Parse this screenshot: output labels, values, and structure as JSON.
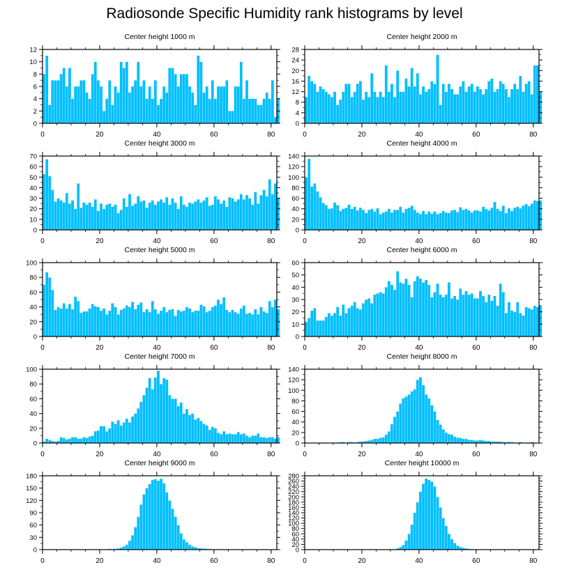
{
  "title": "Radiosonde Specific Humidity rank histograms by level",
  "colors": {
    "bar": "#00bfff",
    "axis": "#000000",
    "background": "#ffffff"
  },
  "chart_data": [
    {
      "type": "bar",
      "title": "Center height 1000 m",
      "xlabel": "",
      "ylabel": "",
      "xlim": [
        0,
        82
      ],
      "ylim": [
        0,
        12
      ],
      "xticks": [
        0,
        20,
        40,
        60,
        80
      ],
      "yticks": [
        0,
        2,
        4,
        6,
        8,
        10,
        12
      ],
      "values": [
        8,
        11,
        3,
        7,
        7,
        7,
        8,
        9,
        6,
        9,
        4,
        6,
        6,
        7,
        7,
        5,
        4,
        8,
        10,
        7,
        6,
        2,
        4,
        7,
        3,
        6,
        5,
        10,
        9,
        10,
        5,
        6,
        7,
        10,
        6,
        7,
        4,
        6,
        4,
        7,
        3,
        4,
        6,
        5,
        9,
        9,
        8,
        6,
        8,
        8,
        8,
        6,
        5,
        3,
        11,
        10,
        5,
        6,
        4,
        7,
        4,
        6,
        6,
        6,
        7,
        2,
        2,
        6,
        6,
        10,
        4,
        7,
        4,
        4,
        4,
        3,
        3,
        4,
        5,
        4,
        7,
        1,
        4
      ]
    },
    {
      "type": "bar",
      "title": "Center height 2000 m",
      "xlabel": "",
      "ylabel": "",
      "xlim": [
        0,
        82
      ],
      "ylim": [
        0,
        28
      ],
      "xticks": [
        0,
        20,
        40,
        60,
        80
      ],
      "yticks": [
        0,
        4,
        8,
        12,
        16,
        20,
        24,
        28
      ],
      "values": [
        10,
        18,
        16,
        15,
        12,
        14,
        13,
        12,
        11,
        10,
        12,
        7,
        9,
        12,
        15,
        15,
        10,
        12,
        15,
        16,
        9,
        12,
        10,
        19,
        12,
        10,
        12,
        10,
        22,
        12,
        15,
        10,
        20,
        12,
        12,
        17,
        14,
        21,
        14,
        19,
        11,
        14,
        12,
        13,
        16,
        15,
        26,
        7,
        15,
        12,
        15,
        13,
        11,
        11,
        14,
        16,
        12,
        14,
        15,
        12,
        14,
        13,
        11,
        13,
        16,
        17,
        12,
        13,
        16,
        15,
        13,
        10,
        13,
        15,
        13,
        18,
        12,
        15,
        16,
        11,
        22,
        22,
        12
      ]
    },
    {
      "type": "bar",
      "title": "Center height 3000 m",
      "xlabel": "",
      "ylabel": "",
      "xlim": [
        0,
        82
      ],
      "ylim": [
        0,
        70
      ],
      "xticks": [
        0,
        20,
        40,
        60,
        80
      ],
      "yticks": [
        0,
        10,
        20,
        30,
        40,
        50,
        60,
        70
      ],
      "values": [
        53,
        67,
        51,
        38,
        27,
        30,
        28,
        26,
        35,
        25,
        28,
        20,
        44,
        21,
        26,
        24,
        26,
        22,
        29,
        18,
        25,
        20,
        24,
        25,
        22,
        24,
        16,
        19,
        30,
        22,
        34,
        23,
        25,
        32,
        27,
        28,
        21,
        26,
        28,
        24,
        27,
        29,
        26,
        31,
        24,
        30,
        26,
        20,
        32,
        24,
        22,
        26,
        25,
        27,
        29,
        26,
        28,
        31,
        23,
        24,
        32,
        29,
        25,
        28,
        22,
        31,
        30,
        27,
        29,
        34,
        29,
        33,
        30,
        24,
        36,
        25,
        33,
        38,
        32,
        48,
        34,
        44,
        30
      ]
    },
    {
      "type": "bar",
      "title": "Center height 4000 m",
      "xlabel": "",
      "ylabel": "",
      "xlim": [
        0,
        82
      ],
      "ylim": [
        0,
        140
      ],
      "xticks": [
        0,
        20,
        40,
        60,
        80
      ],
      "yticks": [
        0,
        20,
        40,
        60,
        80,
        100,
        120,
        140
      ],
      "values": [
        100,
        135,
        82,
        88,
        73,
        62,
        51,
        47,
        40,
        41,
        52,
        47,
        36,
        40,
        42,
        48,
        40,
        44,
        37,
        42,
        38,
        32,
        38,
        40,
        35,
        41,
        30,
        33,
        35,
        40,
        33,
        38,
        38,
        44,
        33,
        40,
        42,
        46,
        38,
        33,
        30,
        36,
        30,
        35,
        31,
        35,
        30,
        32,
        36,
        33,
        32,
        37,
        38,
        34,
        43,
        38,
        40,
        37,
        33,
        37,
        37,
        35,
        44,
        40,
        37,
        42,
        53,
        40,
        36,
        46,
        32,
        41,
        36,
        42,
        44,
        41,
        46,
        49,
        45,
        50,
        56,
        55,
        56
      ]
    },
    {
      "type": "bar",
      "title": "Center height 5000 m",
      "xlabel": "",
      "ylabel": "",
      "xlim": [
        0,
        82
      ],
      "ylim": [
        0,
        100
      ],
      "xticks": [
        0,
        20,
        40,
        60,
        80
      ],
      "yticks": [
        0,
        20,
        40,
        60,
        80,
        100
      ],
      "values": [
        70,
        87,
        80,
        63,
        36,
        40,
        38,
        45,
        38,
        44,
        37,
        54,
        48,
        32,
        34,
        34,
        38,
        44,
        41,
        40,
        35,
        38,
        30,
        35,
        45,
        40,
        30,
        36,
        38,
        42,
        40,
        47,
        37,
        43,
        46,
        33,
        37,
        33,
        48,
        37,
        31,
        35,
        40,
        33,
        36,
        37,
        28,
        36,
        34,
        35,
        40,
        38,
        33,
        35,
        35,
        43,
        41,
        33,
        35,
        40,
        42,
        50,
        44,
        53,
        36,
        33,
        36,
        33,
        31,
        38,
        42,
        31,
        32,
        30,
        37,
        30,
        40,
        34,
        32,
        48,
        40,
        50,
        37
      ]
    },
    {
      "type": "bar",
      "title": "Center height 6000 m",
      "xlabel": "",
      "ylabel": "",
      "xlim": [
        0,
        82
      ],
      "ylim": [
        0,
        60
      ],
      "xticks": [
        0,
        20,
        40,
        60,
        80
      ],
      "yticks": [
        0,
        10,
        20,
        30,
        40,
        50,
        60
      ],
      "values": [
        12,
        15,
        21,
        23,
        13,
        13,
        13,
        16,
        19,
        17,
        19,
        24,
        17,
        26,
        19,
        23,
        25,
        28,
        23,
        22,
        27,
        30,
        31,
        27,
        34,
        35,
        36,
        35,
        40,
        45,
        42,
        38,
        53,
        44,
        43,
        47,
        42,
        32,
        45,
        49,
        47,
        44,
        46,
        42,
        32,
        36,
        43,
        34,
        32,
        34,
        44,
        31,
        33,
        30,
        39,
        34,
        37,
        34,
        35,
        31,
        31,
        37,
        33,
        28,
        34,
        29,
        33,
        25,
        43,
        36,
        19,
        28,
        21,
        20,
        28,
        19,
        17,
        24,
        23,
        22,
        25,
        24,
        25
      ]
    },
    {
      "type": "bar",
      "title": "Center height 7000 m",
      "xlabel": "",
      "ylabel": "",
      "xlim": [
        0,
        82
      ],
      "ylim": [
        0,
        100
      ],
      "xticks": [
        0,
        20,
        40,
        60,
        80
      ],
      "yticks": [
        0,
        20,
        40,
        60,
        80,
        100
      ],
      "values": [
        2,
        6,
        4,
        3,
        2,
        3,
        8,
        7,
        5,
        6,
        8,
        8,
        6,
        6,
        8,
        7,
        9,
        10,
        16,
        17,
        23,
        23,
        16,
        20,
        29,
        26,
        31,
        24,
        28,
        33,
        28,
        36,
        40,
        47,
        56,
        65,
        75,
        88,
        73,
        89,
        98,
        80,
        88,
        86,
        65,
        60,
        60,
        50,
        55,
        40,
        46,
        38,
        40,
        32,
        34,
        30,
        26,
        24,
        18,
        22,
        20,
        14,
        12,
        16,
        12,
        13,
        12,
        12,
        15,
        12,
        13,
        10,
        8,
        10,
        10,
        13,
        8,
        8,
        7,
        8,
        8,
        6,
        8
      ]
    },
    {
      "type": "bar",
      "title": "Center height 8000 m",
      "xlabel": "",
      "ylabel": "",
      "xlim": [
        0,
        82
      ],
      "ylim": [
        0,
        140
      ],
      "xticks": [
        0,
        20,
        40,
        60,
        80
      ],
      "yticks": [
        0,
        20,
        40,
        60,
        80,
        100,
        120,
        140
      ],
      "values": [
        1,
        0,
        0,
        0,
        1,
        0,
        0,
        1,
        0,
        1,
        1,
        1,
        2,
        2,
        1,
        2,
        2,
        1,
        2,
        3,
        3,
        4,
        5,
        6,
        8,
        8,
        10,
        11,
        16,
        22,
        36,
        50,
        60,
        75,
        85,
        88,
        92,
        98,
        102,
        120,
        125,
        110,
        92,
        85,
        72,
        60,
        44,
        35,
        26,
        20,
        17,
        16,
        12,
        10,
        10,
        8,
        8,
        6,
        6,
        5,
        5,
        6,
        5,
        4,
        4,
        3,
        3,
        3,
        3,
        2,
        2,
        2,
        2,
        1,
        1,
        2,
        1,
        1,
        1,
        2,
        1,
        0,
        0
      ]
    },
    {
      "type": "bar",
      "title": "Center height 9000 m",
      "xlabel": "",
      "ylabel": "",
      "xlim": [
        0,
        82
      ],
      "ylim": [
        0,
        180
      ],
      "xticks": [
        0,
        20,
        40,
        60,
        80
      ],
      "yticks": [
        0,
        30,
        60,
        90,
        120,
        150,
        180
      ],
      "values": [
        0,
        0,
        0,
        0,
        0,
        0,
        0,
        0,
        0,
        0,
        0,
        0,
        0,
        0,
        0,
        0,
        0,
        0,
        0,
        1,
        0,
        1,
        1,
        2,
        1,
        2,
        3,
        5,
        8,
        12,
        22,
        35,
        55,
        80,
        110,
        135,
        150,
        160,
        170,
        172,
        168,
        173,
        162,
        140,
        120,
        100,
        80,
        60,
        40,
        25,
        18,
        12,
        8,
        6,
        4,
        3,
        3,
        2,
        2,
        1,
        1,
        1,
        0,
        1,
        0,
        0,
        0,
        0,
        0,
        0,
        0,
        0,
        0,
        0,
        0,
        0,
        0,
        0,
        0,
        0,
        0,
        0,
        0
      ]
    },
    {
      "type": "bar",
      "title": "Center height 10000 m",
      "xlabel": "",
      "ylabel": "",
      "xlim": [
        0,
        82
      ],
      "ylim": [
        0,
        280
      ],
      "xticks": [
        0,
        20,
        40,
        60,
        80
      ],
      "yticks": [
        0,
        20,
        40,
        60,
        80,
        100,
        120,
        140,
        160,
        180,
        200,
        220,
        240,
        260,
        280
      ],
      "values": [
        0,
        0,
        0,
        0,
        0,
        0,
        0,
        0,
        0,
        0,
        0,
        0,
        0,
        0,
        0,
        0,
        0,
        0,
        0,
        0,
        0,
        0,
        0,
        0,
        0,
        0,
        0,
        0,
        0,
        0,
        0,
        2,
        5,
        10,
        18,
        35,
        60,
        95,
        140,
        180,
        220,
        250,
        270,
        265,
        258,
        240,
        200,
        160,
        120,
        90,
        60,
        40,
        25,
        15,
        10,
        7,
        5,
        3,
        2,
        2,
        1,
        1,
        1,
        1,
        0,
        0,
        0,
        0,
        0,
        0,
        0,
        0,
        0,
        0,
        0,
        0,
        0,
        0,
        0,
        0,
        0,
        0,
        0
      ]
    }
  ]
}
